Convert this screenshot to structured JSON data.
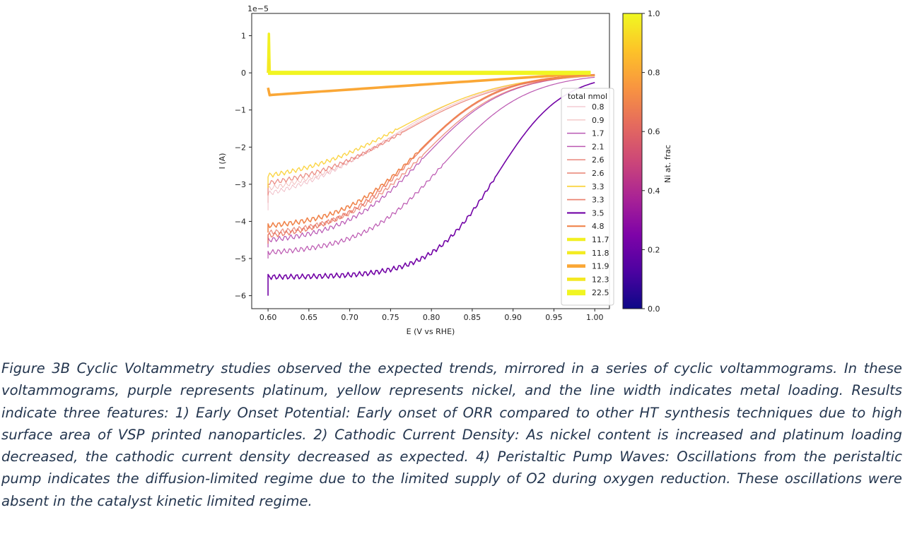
{
  "chart_data": {
    "type": "line",
    "title": "",
    "xlabel": "E (V vs RHE)",
    "ylabel": "I (A)",
    "xlim": [
      0.58,
      1.018
    ],
    "ylim": [
      -6.35,
      1.6
    ],
    "y_multiplier": "1e−5",
    "xticks": [
      "0.60",
      "0.65",
      "0.70",
      "0.75",
      "0.80",
      "0.85",
      "0.90",
      "0.95",
      "1.00"
    ],
    "yticks": [
      "1",
      "0",
      "−1",
      "−2",
      "−3",
      "−4",
      "−5",
      "−6"
    ],
    "colorbar": {
      "label": "Ni at. frac",
      "range": [
        0.0,
        1.0
      ],
      "ticks": [
        "0.0",
        "0.2",
        "0.4",
        "0.6",
        "0.8",
        "1.0"
      ]
    },
    "legend": {
      "title": "total nmol",
      "position": "right"
    },
    "series": [
      {
        "name": "0.8",
        "ni": 0.55,
        "width": 0.8,
        "alpha": 0.45,
        "e_half": 0.745,
        "sharp": 0.065,
        "i_end": -3.6,
        "i_min": -3.7
      },
      {
        "name": "0.9",
        "ni": 0.6,
        "width": 0.9,
        "alpha": 0.45,
        "e_half": 0.755,
        "sharp": 0.065,
        "i_end": -3.4,
        "i_min": -3.5
      },
      {
        "name": "1.7",
        "ni": 0.35,
        "width": 1.2,
        "alpha": 0.75,
        "e_half": 0.79,
        "sharp": 0.05,
        "i_end": -4.6,
        "i_min": -4.7
      },
      {
        "name": "2.1",
        "ni": 0.36,
        "width": 1.2,
        "alpha": 0.75,
        "e_half": 0.815,
        "sharp": 0.05,
        "i_end": -4.9,
        "i_min": -5.0
      },
      {
        "name": "2.6",
        "ni": 0.62,
        "width": 1.3,
        "alpha": 0.75,
        "e_half": 0.765,
        "sharp": 0.065,
        "i_end": -3.2,
        "i_min": -3.3
      },
      {
        "name": "2.6",
        "ni": 0.63,
        "width": 1.3,
        "alpha": 0.75,
        "e_half": 0.79,
        "sharp": 0.05,
        "i_end": -4.4,
        "i_min": -4.5
      },
      {
        "name": "3.3",
        "ni": 0.9,
        "width": 1.4,
        "alpha": 0.85,
        "e_half": 0.76,
        "sharp": 0.065,
        "i_end": -3.0,
        "i_min": -3.1
      },
      {
        "name": "3.3",
        "ni": 0.64,
        "width": 1.4,
        "alpha": 0.85,
        "e_half": 0.78,
        "sharp": 0.05,
        "i_end": -4.5,
        "i_min": -4.6
      },
      {
        "name": "3.5",
        "ni": 0.22,
        "width": 1.6,
        "alpha": 1.0,
        "e_half": 0.88,
        "sharp": 0.04,
        "i_end": -5.5,
        "i_min": -6.0
      },
      {
        "name": "4.8",
        "ni": 0.7,
        "width": 1.6,
        "alpha": 1.0,
        "e_half": 0.785,
        "sharp": 0.048,
        "i_end": -4.2,
        "i_min": -4.3
      },
      {
        "name": "11.7",
        "ni": 0.98,
        "width": 3.5,
        "alpha": 1.0,
        "flat": true
      },
      {
        "name": "11.8",
        "ni": 0.97,
        "width": 3.5,
        "alpha": 1.0,
        "flat": true
      },
      {
        "name": "11.9",
        "ni": 0.8,
        "width": 3.6,
        "alpha": 1.0,
        "flat": true,
        "orange": true
      },
      {
        "name": "12.3",
        "ni": 0.96,
        "width": 3.6,
        "alpha": 1.0,
        "flat": true
      },
      {
        "name": "22.5",
        "ni": 0.99,
        "width": 6.0,
        "alpha": 1.0,
        "flat": true
      }
    ]
  },
  "caption": "Figure 3B Cyclic Voltammetry studies observed the expected trends, mirrored in a series of cyclic voltammograms. In these voltammograms, purple represents platinum, yellow represents nickel, and the line width indicates metal loading. Results indicate three features: 1) Early Onset Potential: Early onset of ORR compared to other HT synthesis techniques due to high surface area of VSP printed nanoparticles.  2) Cathodic Current Density: As nickel content is increased and platinum loading decreased, the cathodic current density decreased as expected. 4) Peristaltic Pump Waves: Oscillations from the peristaltic pump indicates the diffusion-limited regime due to the limited supply of O2 during oxygen reduction. These oscillations were absent in the catalyst kinetic limited regime."
}
